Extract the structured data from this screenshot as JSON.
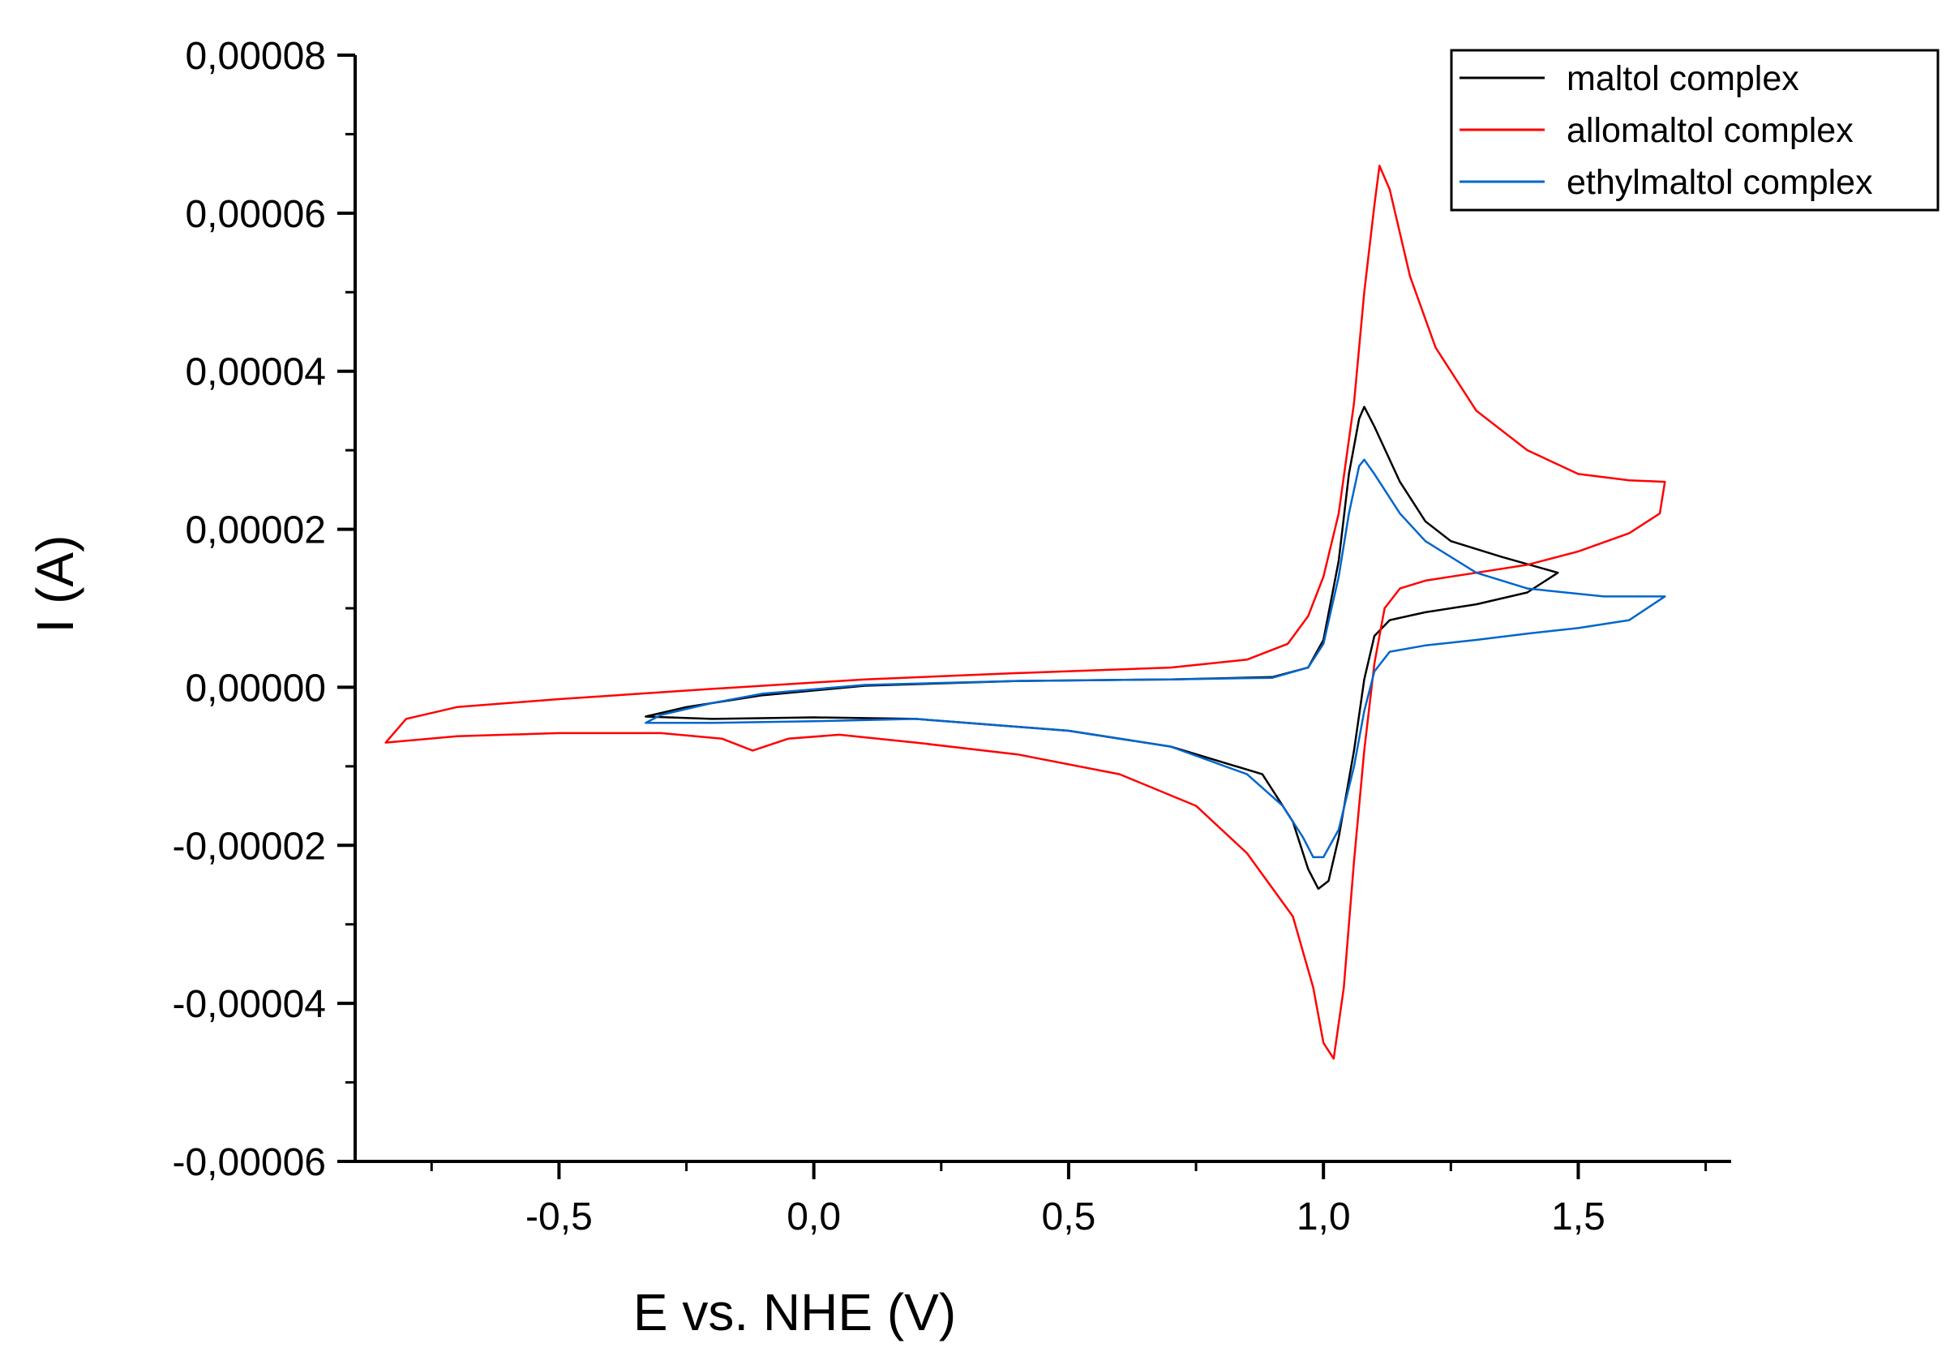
{
  "chart_data": {
    "type": "line",
    "title": "",
    "xlabel": "E vs. NHE (V)",
    "ylabel": "I (A)",
    "xlim": [
      -0.9,
      1.8
    ],
    "ylim": [
      -6e-05,
      8e-05
    ],
    "x_ticks": [
      -0.5,
      0.0,
      0.5,
      1.0,
      1.5
    ],
    "x_tick_labels": [
      "-0,5",
      "0,0",
      "0,5",
      "1,0",
      "1,5"
    ],
    "y_ticks": [
      -6e-05,
      -4e-05,
      -2e-05,
      0.0,
      2e-05,
      4e-05,
      6e-05,
      8e-05
    ],
    "y_tick_labels": [
      "-0,00006",
      "-0,00004",
      "-0,00002",
      "0,00000",
      "0,00002",
      "0,00004",
      "0,00006",
      "0,00008"
    ],
    "grid": false,
    "legend_position": "top-right",
    "series": [
      {
        "name": "maltol complex",
        "color": "#000000",
        "points": [
          [
            -0.33,
            -3.7e-06
          ],
          [
            -0.25,
            -2.5e-06
          ],
          [
            -0.1,
            -1e-06
          ],
          [
            0.1,
            2e-07
          ],
          [
            0.4,
            8e-07
          ],
          [
            0.7,
            1e-06
          ],
          [
            0.9,
            1.3e-06
          ],
          [
            0.97,
            2.5e-06
          ],
          [
            1.0,
            6e-06
          ],
          [
            1.03,
            1.6e-05
          ],
          [
            1.05,
            2.7e-05
          ],
          [
            1.07,
            3.4e-05
          ],
          [
            1.08,
            3.55e-05
          ],
          [
            1.1,
            3.3e-05
          ],
          [
            1.15,
            2.6e-05
          ],
          [
            1.2,
            2.1e-05
          ],
          [
            1.25,
            1.85e-05
          ],
          [
            1.35,
            1.65e-05
          ],
          [
            1.46,
            1.45e-05
          ],
          [
            1.4,
            1.2e-05
          ],
          [
            1.3,
            1.05e-05
          ],
          [
            1.2,
            9.5e-06
          ],
          [
            1.13,
            8.5e-06
          ],
          [
            1.1,
            6.5e-06
          ],
          [
            1.08,
            1e-06
          ],
          [
            1.06,
            -8e-06
          ],
          [
            1.03,
            -1.9e-05
          ],
          [
            1.01,
            -2.45e-05
          ],
          [
            0.99,
            -2.55e-05
          ],
          [
            0.97,
            -2.3e-05
          ],
          [
            0.94,
            -1.7e-05
          ],
          [
            0.88,
            -1.1e-05
          ],
          [
            0.7,
            -7.5e-06
          ],
          [
            0.5,
            -5.5e-06
          ],
          [
            0.2,
            -4e-06
          ],
          [
            0.0,
            -3.8e-06
          ],
          [
            -0.2,
            -4e-06
          ],
          [
            -0.33,
            -3.7e-06
          ]
        ]
      },
      {
        "name": "allomaltol complex",
        "color": "#ff0000",
        "points": [
          [
            -0.84,
            -7e-06
          ],
          [
            -0.8,
            -4e-06
          ],
          [
            -0.7,
            -2.5e-06
          ],
          [
            -0.5,
            -1.5e-06
          ],
          [
            -0.2,
            -2e-07
          ],
          [
            0.1,
            1e-06
          ],
          [
            0.4,
            1.8e-06
          ],
          [
            0.7,
            2.5e-06
          ],
          [
            0.85,
            3.5e-06
          ],
          [
            0.93,
            5.5e-06
          ],
          [
            0.97,
            9e-06
          ],
          [
            1.0,
            1.4e-05
          ],
          [
            1.03,
            2.2e-05
          ],
          [
            1.06,
            3.6e-05
          ],
          [
            1.08,
            5e-05
          ],
          [
            1.1,
            6.1e-05
          ],
          [
            1.11,
            6.6e-05
          ],
          [
            1.13,
            6.3e-05
          ],
          [
            1.17,
            5.2e-05
          ],
          [
            1.22,
            4.3e-05
          ],
          [
            1.3,
            3.5e-05
          ],
          [
            1.4,
            3e-05
          ],
          [
            1.5,
            2.7e-05
          ],
          [
            1.6,
            2.62e-05
          ],
          [
            1.67,
            2.6e-05
          ],
          [
            1.66,
            2.2e-05
          ],
          [
            1.6,
            1.95e-05
          ],
          [
            1.5,
            1.72e-05
          ],
          [
            1.4,
            1.55e-05
          ],
          [
            1.3,
            1.45e-05
          ],
          [
            1.2,
            1.35e-05
          ],
          [
            1.15,
            1.25e-05
          ],
          [
            1.12,
            1e-05
          ],
          [
            1.1,
            3e-06
          ],
          [
            1.08,
            -8e-06
          ],
          [
            1.06,
            -2.2e-05
          ],
          [
            1.04,
            -3.8e-05
          ],
          [
            1.02,
            -4.7e-05
          ],
          [
            1.0,
            -4.5e-05
          ],
          [
            0.98,
            -3.8e-05
          ],
          [
            0.94,
            -2.9e-05
          ],
          [
            0.85,
            -2.1e-05
          ],
          [
            0.75,
            -1.5e-05
          ],
          [
            0.6,
            -1.1e-05
          ],
          [
            0.4,
            -8.5e-06
          ],
          [
            0.2,
            -7e-06
          ],
          [
            0.05,
            -6e-06
          ],
          [
            -0.05,
            -6.5e-06
          ],
          [
            -0.12,
            -8e-06
          ],
          [
            -0.18,
            -6.5e-06
          ],
          [
            -0.3,
            -5.8e-06
          ],
          [
            -0.5,
            -5.8e-06
          ],
          [
            -0.7,
            -6.2e-06
          ],
          [
            -0.84,
            -7e-06
          ]
        ]
      },
      {
        "name": "ethylmaltol complex",
        "color": "#0066cc",
        "points": [
          [
            -0.33,
            -4.5e-06
          ],
          [
            -0.3,
            -3.5e-06
          ],
          [
            -0.2,
            -2e-06
          ],
          [
            -0.1,
            -8e-07
          ],
          [
            0.1,
            3e-07
          ],
          [
            0.4,
            8e-07
          ],
          [
            0.7,
            1e-06
          ],
          [
            0.9,
            1.2e-06
          ],
          [
            0.97,
            2.5e-06
          ],
          [
            1.0,
            5.5e-06
          ],
          [
            1.03,
            1.4e-05
          ],
          [
            1.05,
            2.2e-05
          ],
          [
            1.07,
            2.8e-05
          ],
          [
            1.08,
            2.88e-05
          ],
          [
            1.1,
            2.7e-05
          ],
          [
            1.15,
            2.2e-05
          ],
          [
            1.2,
            1.85e-05
          ],
          [
            1.3,
            1.45e-05
          ],
          [
            1.4,
            1.25e-05
          ],
          [
            1.55,
            1.15e-05
          ],
          [
            1.67,
            1.15e-05
          ],
          [
            1.6,
            8.5e-06
          ],
          [
            1.5,
            7.5e-06
          ],
          [
            1.4,
            6.8e-06
          ],
          [
            1.3,
            6e-06
          ],
          [
            1.2,
            5.3e-06
          ],
          [
            1.13,
            4.5e-06
          ],
          [
            1.1,
            2e-06
          ],
          [
            1.08,
            -3e-06
          ],
          [
            1.06,
            -1e-05
          ],
          [
            1.03,
            -1.8e-05
          ],
          [
            1.0,
            -2.15e-05
          ],
          [
            0.98,
            -2.15e-05
          ],
          [
            0.96,
            -1.9e-05
          ],
          [
            0.92,
            -1.5e-05
          ],
          [
            0.85,
            -1.1e-05
          ],
          [
            0.7,
            -7.5e-06
          ],
          [
            0.5,
            -5.5e-06
          ],
          [
            0.2,
            -4e-06
          ],
          [
            0.0,
            -4.3e-06
          ],
          [
            -0.2,
            -4.5e-06
          ],
          [
            -0.33,
            -4.5e-06
          ]
        ]
      }
    ]
  }
}
